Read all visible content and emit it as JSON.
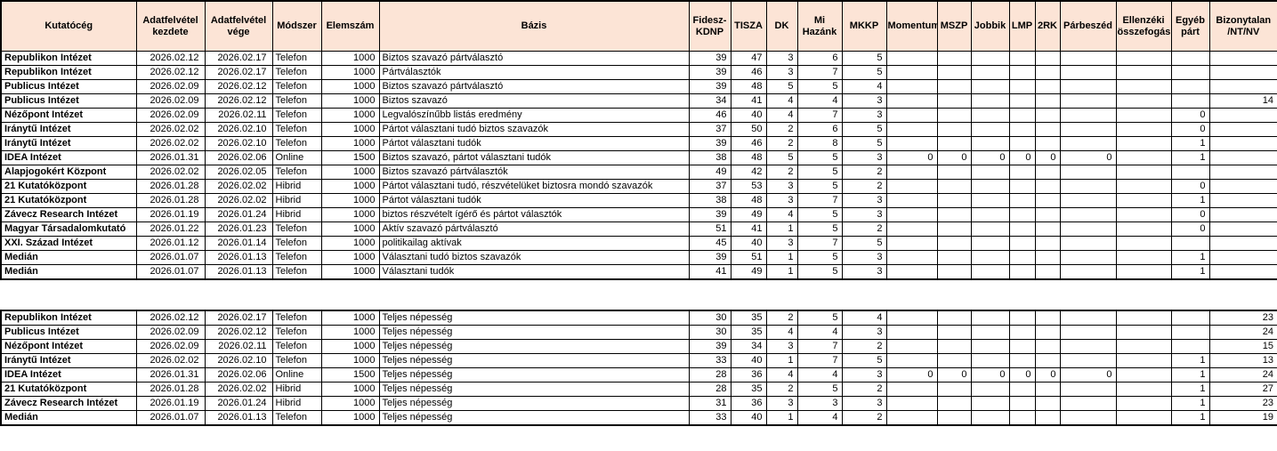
{
  "header_bg_color": "#FCE4D6",
  "border_color": "#000000",
  "columns": [
    "Kutatócég",
    "Adatfelvétel kezdete",
    "Adatfelvétel vége",
    "Módszer",
    "Elemszám",
    "Bázis",
    "Fidesz-KDNP",
    "TISZA",
    "DK",
    "Mi Hazánk",
    "MKKP",
    "Momentum",
    "MSZP",
    "Jobbik",
    "LMP",
    "2RK",
    "Párbeszéd",
    "Ellenzéki összefogás",
    "Egyéb párt",
    "Bizonytalan /NT/NV"
  ],
  "column_keys": [
    "kutatoceg",
    "adatfelvetel-kezdete",
    "adatfelvetel-vege",
    "modszer",
    "elemszam",
    "bazis",
    "fidesz-kdnp",
    "tisza",
    "dk",
    "mi-hazank",
    "mkkp",
    "momentum",
    "mszp",
    "jobbik",
    "lmp",
    "2rk",
    "parbeszed",
    "ellenzeki-osszefogas",
    "egyeb-part",
    "bizonytalan-nt-nv"
  ],
  "tables": {
    "main": {
      "rows": [
        [
          "Republikon Intézet",
          "2026.02.12",
          "2026.02.17",
          "Telefon",
          1000,
          "Biztos szavazó pártválasztó",
          39,
          47,
          3,
          6,
          5,
          "",
          "",
          "",
          "",
          "",
          "",
          "",
          "",
          ""
        ],
        [
          "Republikon Intézet",
          "2026.02.12",
          "2026.02.17",
          "Telefon",
          1000,
          "Pártválasztók",
          39,
          46,
          3,
          7,
          5,
          "",
          "",
          "",
          "",
          "",
          "",
          "",
          "",
          ""
        ],
        [
          "Publicus Intézet",
          "2026.02.09",
          "2026.02.12",
          "Telefon",
          1000,
          "Biztos szavazó pártválasztó",
          39,
          48,
          5,
          5,
          4,
          "",
          "",
          "",
          "",
          "",
          "",
          "",
          "",
          ""
        ],
        [
          "Publicus Intézet",
          "2026.02.09",
          "2026.02.12",
          "Telefon",
          1000,
          "Biztos szavazó",
          34,
          41,
          4,
          4,
          3,
          "",
          "",
          "",
          "",
          "",
          "",
          "",
          "",
          14
        ],
        [
          "Nézőpont Intézet",
          "2026.02.09",
          "2026.02.11",
          "Telefon",
          1000,
          "Legvalószínűbb listás eredmény",
          46,
          40,
          4,
          7,
          3,
          "",
          "",
          "",
          "",
          "",
          "",
          "",
          0,
          ""
        ],
        [
          "Iránytű Intézet",
          "2026.02.02",
          "2026.02.10",
          "Telefon",
          1000,
          "Pártot választani tudó biztos szavazók",
          37,
          50,
          2,
          6,
          5,
          "",
          "",
          "",
          "",
          "",
          "",
          "",
          0,
          ""
        ],
        [
          "Iránytű Intézet",
          "2026.02.02",
          "2026.02.10",
          "Telefon",
          1000,
          "Pártot választani tudók",
          39,
          46,
          2,
          8,
          5,
          "",
          "",
          "",
          "",
          "",
          "",
          "",
          1,
          ""
        ],
        [
          "IDEA Intézet",
          "2026.01.31",
          "2026.02.06",
          "Online",
          1500,
          "Biztos szavazó, pártot választani tudók",
          38,
          48,
          5,
          5,
          3,
          0,
          0,
          0,
          0,
          0,
          0,
          "",
          1,
          ""
        ],
        [
          "Alapjogokért Központ",
          "2026.02.02",
          "2026.02.05",
          "Telefon",
          1000,
          "Biztos szavazó pártválasztók",
          49,
          42,
          2,
          5,
          2,
          "",
          "",
          "",
          "",
          "",
          "",
          "",
          "",
          ""
        ],
        [
          "21 Kutatóközpont",
          "2026.01.28",
          "2026.02.02",
          "Hibrid",
          1000,
          "Pártot választani tudó, részvételüket biztosra mondó szavazók",
          37,
          53,
          3,
          5,
          2,
          "",
          "",
          "",
          "",
          "",
          "",
          "",
          0,
          ""
        ],
        [
          "21 Kutatóközpont",
          "2026.01.28",
          "2026.02.02",
          "Hibrid",
          1000,
          "Pártot választani tudók",
          38,
          48,
          3,
          7,
          3,
          "",
          "",
          "",
          "",
          "",
          "",
          "",
          1,
          ""
        ],
        [
          "Závecz Research Intézet",
          "2026.01.19",
          "2026.01.24",
          "Hibrid",
          1000,
          "biztos részvételt ígérő és pártot választók",
          39,
          49,
          4,
          5,
          3,
          "",
          "",
          "",
          "",
          "",
          "",
          "",
          0,
          ""
        ],
        [
          "Magyar Társadalomkutató",
          "2026.01.22",
          "2026.01.23",
          "Telefon",
          1000,
          "Aktív szavazó pártválasztó",
          51,
          41,
          1,
          5,
          2,
          "",
          "",
          "",
          "",
          "",
          "",
          "",
          0,
          ""
        ],
        [
          "XXI. Század Intézet",
          "2026.01.12",
          "2026.01.14",
          "Telefon",
          1000,
          "politikailag aktívak",
          45,
          40,
          3,
          7,
          5,
          "",
          "",
          "",
          "",
          "",
          "",
          "",
          "",
          ""
        ],
        [
          "Medián",
          "2026.01.07",
          "2026.01.13",
          "Telefon",
          1000,
          "Választani tudó biztos szavazók",
          39,
          51,
          1,
          5,
          3,
          "",
          "",
          "",
          "",
          "",
          "",
          "",
          1,
          ""
        ],
        [
          "Medián",
          "2026.01.07",
          "2026.01.13",
          "Telefon",
          1000,
          "Választani tudók",
          41,
          49,
          1,
          5,
          3,
          "",
          "",
          "",
          "",
          "",
          "",
          "",
          1,
          ""
        ]
      ]
    },
    "total": {
      "rows": [
        [
          "Republikon Intézet",
          "2026.02.12",
          "2026.02.17",
          "Telefon",
          1000,
          "Teljes népesség",
          30,
          35,
          2,
          5,
          4,
          "",
          "",
          "",
          "",
          "",
          "",
          "",
          "",
          23
        ],
        [
          "Publicus Intézet",
          "2026.02.09",
          "2026.02.12",
          "Telefon",
          1000,
          "Teljes népesség",
          30,
          35,
          4,
          4,
          3,
          "",
          "",
          "",
          "",
          "",
          "",
          "",
          "",
          24
        ],
        [
          "Nézőpont Intézet",
          "2026.02.09",
          "2026.02.11",
          "Telefon",
          1000,
          "Teljes népesség",
          39,
          34,
          3,
          7,
          2,
          "",
          "",
          "",
          "",
          "",
          "",
          "",
          "",
          15
        ],
        [
          "Iránytű Intézet",
          "2026.02.02",
          "2026.02.10",
          "Telefon",
          1000,
          "Teljes népesség",
          33,
          40,
          1,
          7,
          5,
          "",
          "",
          "",
          "",
          "",
          "",
          "",
          1,
          13
        ],
        [
          "IDEA Intézet",
          "2026.01.31",
          "2026.02.06",
          "Online",
          1500,
          "Teljes népesség",
          28,
          36,
          4,
          4,
          3,
          0,
          0,
          0,
          0,
          0,
          0,
          "",
          1,
          24
        ],
        [
          "21 Kutatóközpont",
          "2026.01.28",
          "2026.02.02",
          "Hibrid",
          1000,
          "Teljes népesség",
          28,
          35,
          2,
          5,
          2,
          "",
          "",
          "",
          "",
          "",
          "",
          "",
          1,
          27
        ],
        [
          "Závecz Research Intézet",
          "2026.01.19",
          "2026.01.24",
          "Hibrid",
          1000,
          "Teljes népesség",
          31,
          36,
          3,
          3,
          3,
          "",
          "",
          "",
          "",
          "",
          "",
          "",
          1,
          23
        ],
        [
          "Medián",
          "2026.01.07",
          "2026.01.13",
          "Telefon",
          1000,
          "Teljes népesség",
          33,
          40,
          1,
          4,
          2,
          "",
          "",
          "",
          "",
          "",
          "",
          "",
          1,
          19
        ]
      ]
    }
  }
}
